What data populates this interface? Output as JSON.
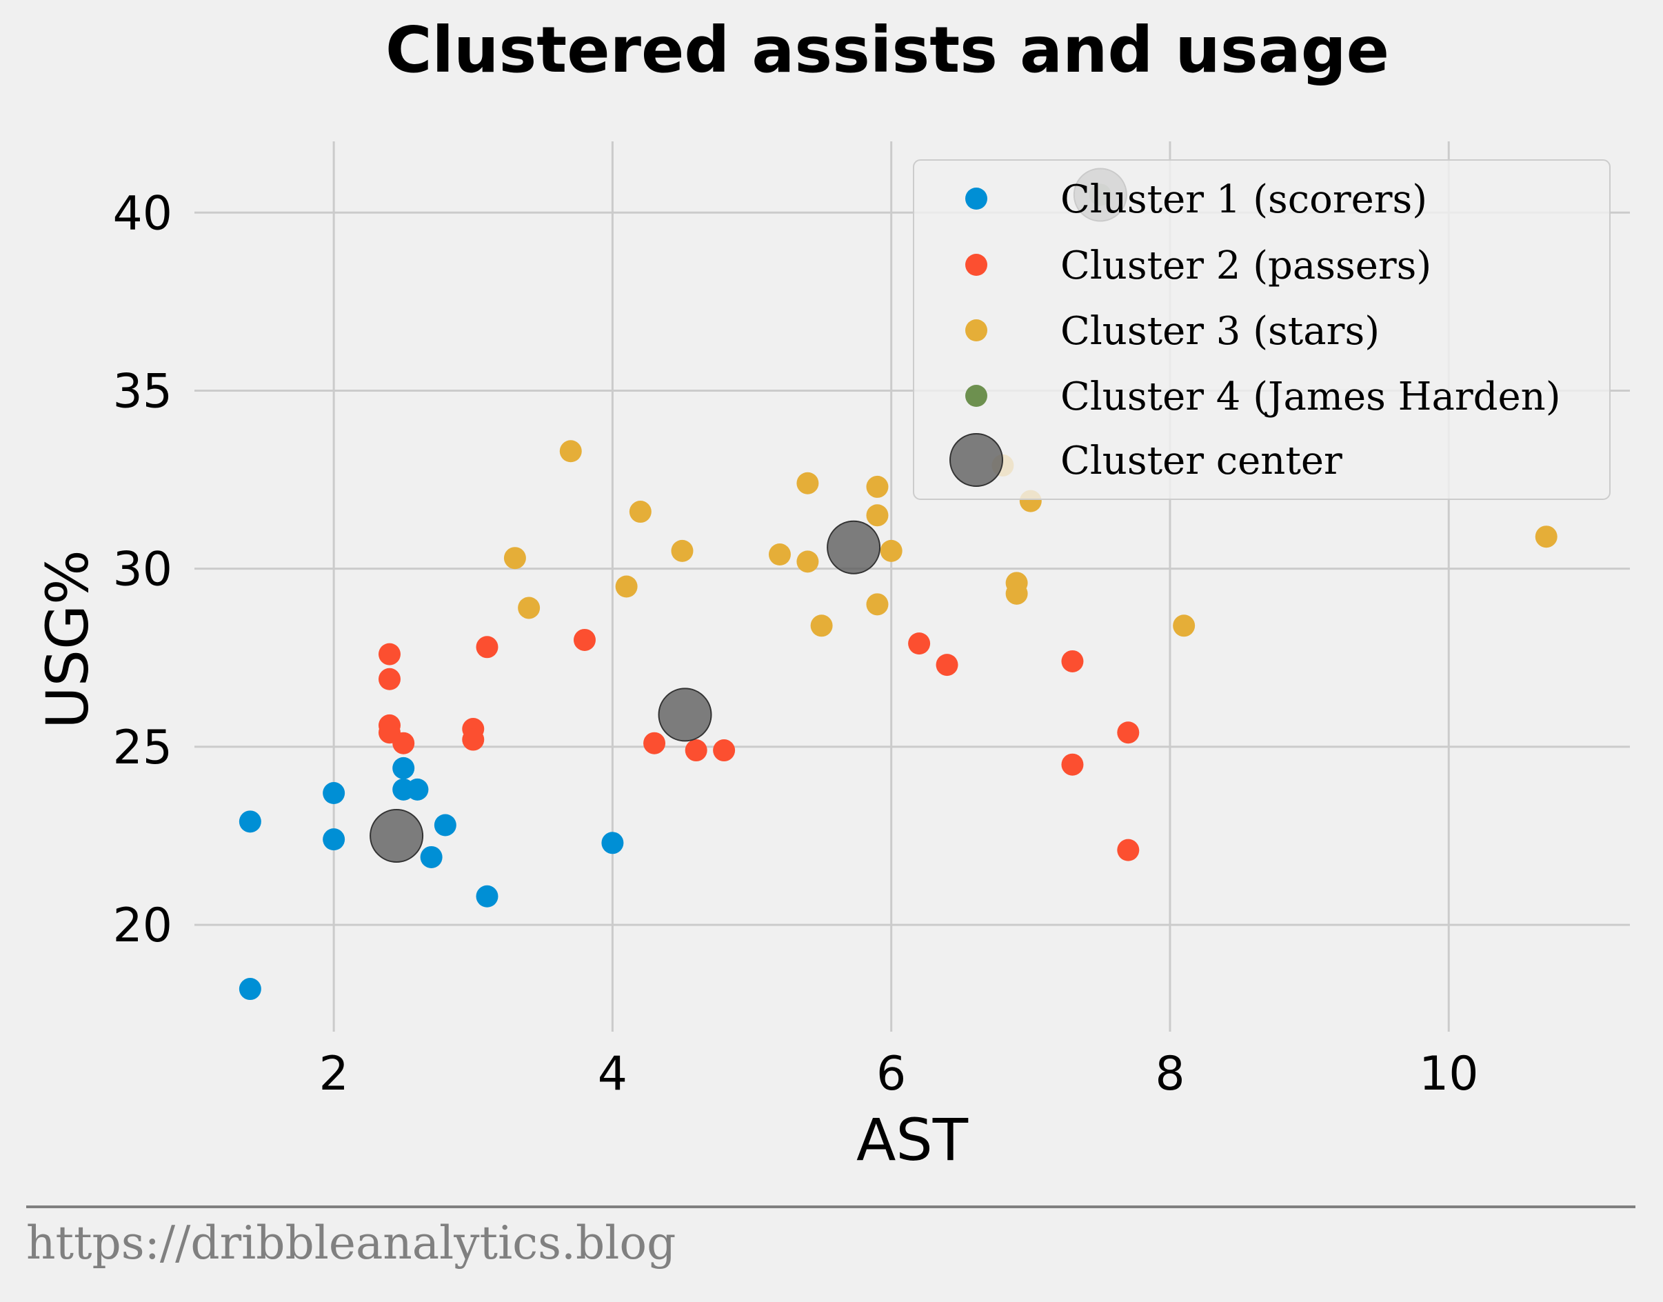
{
  "chart_data": {
    "type": "scatter",
    "title": "Clustered assists and usage",
    "xlabel": "AST",
    "ylabel": "USG%",
    "xlim": [
      1.0,
      11.3
    ],
    "ylim": [
      17.0,
      42.0
    ],
    "xticks": [
      2,
      4,
      6,
      8,
      10
    ],
    "yticks": [
      20,
      25,
      30,
      35,
      40
    ],
    "grid": true,
    "legend_position": "top-right",
    "series": [
      {
        "name": "Cluster 1 (scorers)",
        "color": "#008fd5",
        "points": [
          [
            1.4,
            22.9
          ],
          [
            1.4,
            18.2
          ],
          [
            2.0,
            23.7
          ],
          [
            2.0,
            22.4
          ],
          [
            2.5,
            24.4
          ],
          [
            2.5,
            23.8
          ],
          [
            2.6,
            23.8
          ],
          [
            2.7,
            21.9
          ],
          [
            2.8,
            22.8
          ],
          [
            3.1,
            20.8
          ],
          [
            4.0,
            22.3
          ]
        ]
      },
      {
        "name": "Cluster 2 (passers)",
        "color": "#fc4f30",
        "points": [
          [
            2.4,
            27.6
          ],
          [
            2.4,
            26.9
          ],
          [
            2.4,
            25.6
          ],
          [
            2.4,
            25.4
          ],
          [
            2.5,
            25.1
          ],
          [
            3.0,
            25.5
          ],
          [
            3.0,
            25.2
          ],
          [
            3.1,
            27.8
          ],
          [
            3.8,
            28.0
          ],
          [
            4.3,
            25.1
          ],
          [
            4.6,
            24.9
          ],
          [
            4.8,
            24.9
          ],
          [
            6.2,
            27.9
          ],
          [
            6.4,
            27.3
          ],
          [
            7.3,
            27.4
          ],
          [
            7.3,
            24.5
          ],
          [
            7.7,
            25.4
          ],
          [
            7.7,
            22.1
          ]
        ]
      },
      {
        "name": "Cluster 3 (stars)",
        "color": "#e5ae38",
        "points": [
          [
            3.3,
            30.3
          ],
          [
            3.4,
            28.9
          ],
          [
            3.7,
            33.3
          ],
          [
            4.1,
            29.5
          ],
          [
            4.2,
            31.6
          ],
          [
            4.5,
            30.5
          ],
          [
            5.2,
            30.4
          ],
          [
            5.4,
            32.4
          ],
          [
            5.4,
            30.2
          ],
          [
            5.5,
            28.4
          ],
          [
            5.9,
            32.3
          ],
          [
            5.9,
            31.5
          ],
          [
            5.9,
            29.0
          ],
          [
            6.0,
            30.5
          ],
          [
            6.8,
            32.9
          ],
          [
            6.9,
            29.6
          ],
          [
            6.9,
            29.3
          ],
          [
            7.0,
            31.9
          ],
          [
            8.1,
            28.4
          ],
          [
            10.7,
            30.9
          ]
        ]
      },
      {
        "name": "Cluster 4 (James Harden)",
        "color": "#6d904f",
        "points": [
          [
            7.5,
            40.5
          ]
        ]
      },
      {
        "name": "Cluster center",
        "color": "#555555",
        "points": [
          [
            2.45,
            22.5
          ],
          [
            4.52,
            25.9
          ],
          [
            5.73,
            30.6
          ],
          [
            7.5,
            40.5
          ]
        ]
      }
    ]
  },
  "footer": {
    "source": "https://dribbleanalytics.blog"
  }
}
